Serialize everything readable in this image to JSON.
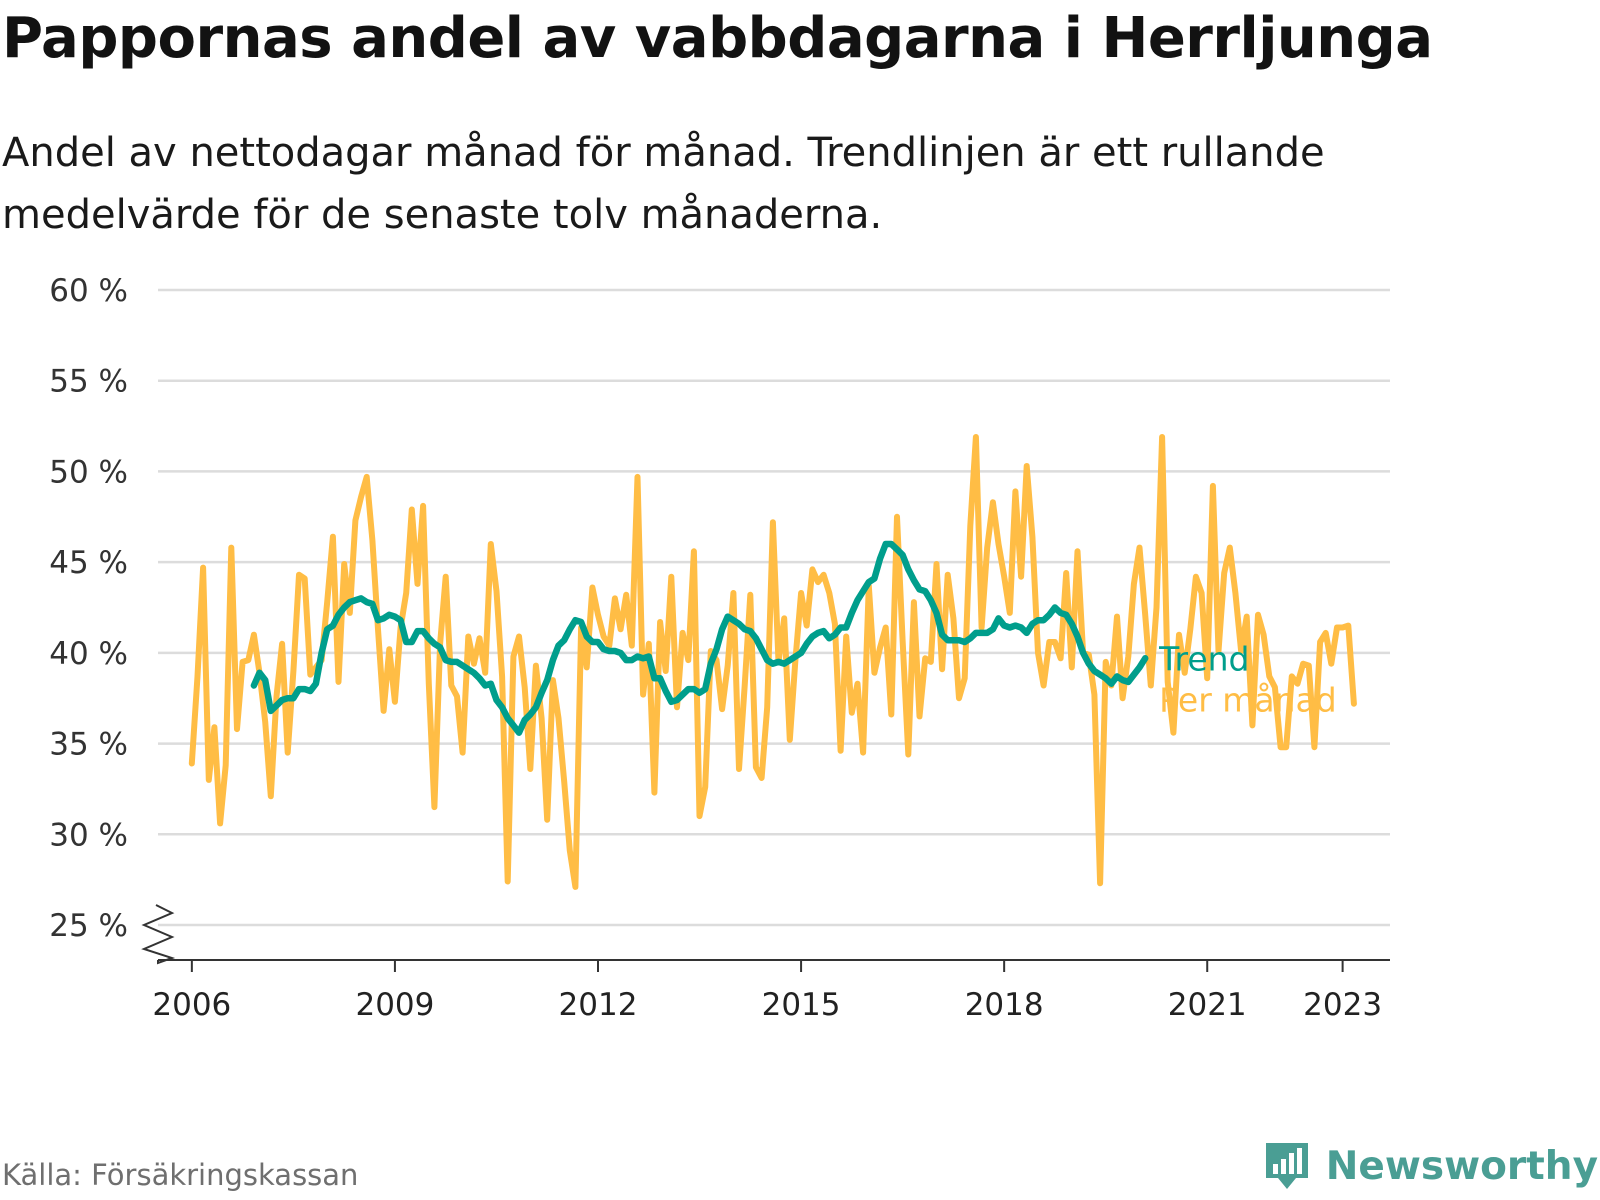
{
  "title": "Pappornas andel av vabbdagarna i Herrljunga",
  "subtitle": "Andel av nettodagar månad för månad. Trendlinjen är ett rullande medelvärde för de senaste tolv månaderna.",
  "source": "Källa: Försäkringskassan",
  "brand": {
    "name": "Newsworthy",
    "icon": "newsworthy-logo-icon",
    "color": "#4a9e94"
  },
  "chart_data": {
    "type": "line",
    "title": "Pappornas andel av vabbdagarna i Herrljunga",
    "subtitle": "Andel av nettodagar månad för månad. Trendlinjen är ett rullande medelvärde för de senaste tolv månaderna.",
    "xlabel": "",
    "ylabel": "",
    "ylim": [
      25,
      60
    ],
    "axis_break": true,
    "yticks": [
      25,
      30,
      35,
      40,
      45,
      50,
      55,
      60
    ],
    "ytick_labels": [
      "25 %",
      "30 %",
      "35 %",
      "40 %",
      "45 %",
      "50 %",
      "55 %",
      "60 %"
    ],
    "xticks": [
      2006,
      2009,
      2012,
      2015,
      2018,
      2021,
      2023
    ],
    "xtick_labels": [
      "2006",
      "2009",
      "2012",
      "2015",
      "2018",
      "2021",
      "2023"
    ],
    "grid": true,
    "legend": "end-of-line labels, right",
    "colors": {
      "monthly": "#ffbd45",
      "trend": "#009e8c",
      "grid": "#dcdcdc",
      "axis": "#333333"
    },
    "series": [
      {
        "name": "Per månad",
        "start": "2006-01",
        "frequency": "monthly",
        "values": [
          33.9,
          38.7,
          44.7,
          33.0,
          35.9,
          30.6,
          33.8,
          45.8,
          35.8,
          39.5,
          39.6,
          41.0,
          38.9,
          36.2,
          32.1,
          37.6,
          40.5,
          34.5,
          39.0,
          44.3,
          44.1,
          38.8,
          39.2,
          39.6,
          42.8,
          46.4,
          38.4,
          44.9,
          42.2,
          47.3,
          48.6,
          49.7,
          46.2,
          41.3,
          36.8,
          40.2,
          37.3,
          41.4,
          43.3,
          47.9,
          43.8,
          48.1,
          38.3,
          31.5,
          40.5,
          44.2,
          38.2,
          37.6,
          34.5,
          40.9,
          39.4,
          40.8,
          38.9,
          46.0,
          43.4,
          38.7,
          27.4,
          39.8,
          40.9,
          38.1,
          33.6,
          39.3,
          36.4,
          30.8,
          38.5,
          36.4,
          32.9,
          29.1,
          27.1,
          41.4,
          39.2,
          43.6,
          42.1,
          40.9,
          40.4,
          43.0,
          41.3,
          43.2,
          40.4,
          49.7,
          37.7,
          40.5,
          32.3,
          41.7,
          39.0,
          44.2,
          37.0,
          41.1,
          39.6,
          45.6,
          31.0,
          32.6,
          40.1,
          39.6,
          36.9,
          39.3,
          43.3,
          33.6,
          38.2,
          43.2,
          33.7,
          33.1,
          37.0,
          47.2,
          39.5,
          41.9,
          35.2,
          39.6,
          43.3,
          41.5,
          44.6,
          43.9,
          44.3,
          43.3,
          41.6,
          34.6,
          40.9,
          36.7,
          38.3,
          34.5,
          43.7,
          38.9,
          40.3,
          41.4,
          36.6,
          47.5,
          40.7,
          34.4,
          42.8,
          36.5,
          39.7,
          39.5,
          44.9,
          39.1,
          44.3,
          41.9,
          37.5,
          38.6,
          47.0,
          51.9,
          41.4,
          45.8,
          48.3,
          46.0,
          44.2,
          42.2,
          48.9,
          44.2,
          50.3,
          46.4,
          40.0,
          38.2,
          40.6,
          40.6,
          39.7,
          44.4,
          39.2,
          45.6,
          40.0,
          39.9,
          37.7,
          27.3,
          39.5,
          38.2,
          42.0,
          37.5,
          39.8,
          43.8,
          45.8,
          42.1,
          38.2,
          42.5,
          51.9,
          38.4,
          35.6,
          41.0,
          38.9,
          41.3,
          44.2,
          43.3,
          38.6,
          49.2,
          40.1,
          44.4,
          45.8,
          43.3,
          40.1,
          42.0,
          36.0,
          42.1,
          41.0,
          38.7,
          38.1,
          34.8,
          34.8,
          38.7,
          38.3,
          39.4,
          39.3,
          34.8,
          40.6,
          41.1,
          39.4,
          41.4,
          41.4,
          41.5,
          37.2
        ]
      },
      {
        "name": "Trend",
        "start": "2006-12",
        "frequency": "monthly",
        "values": [
          38.2,
          38.9,
          38.5,
          36.8,
          37.1,
          37.4,
          37.5,
          37.5,
          38.0,
          38.0,
          37.9,
          38.3,
          40.0,
          41.3,
          41.5,
          42.1,
          42.5,
          42.8,
          42.9,
          43.0,
          42.8,
          42.7,
          41.8,
          41.9,
          42.1,
          42.0,
          41.8,
          40.6,
          40.6,
          41.2,
          41.2,
          40.8,
          40.5,
          40.3,
          39.6,
          39.5,
          39.5,
          39.3,
          39.1,
          38.9,
          38.6,
          38.2,
          38.3,
          37.4,
          37.0,
          36.4,
          36.0,
          35.6,
          36.3,
          36.6,
          37.0,
          37.8,
          38.5,
          39.6,
          40.4,
          40.7,
          41.3,
          41.8,
          41.7,
          40.9,
          40.6,
          40.6,
          40.2,
          40.1,
          40.1,
          40.0,
          39.6,
          39.6,
          39.8,
          39.7,
          39.8,
          38.6,
          38.6,
          37.9,
          37.3,
          37.4,
          37.7,
          38.0,
          38.0,
          37.8,
          38.0,
          39.4,
          40.2,
          41.3,
          42.0,
          41.8,
          41.6,
          41.3,
          41.2,
          40.8,
          40.2,
          39.6,
          39.4,
          39.5,
          39.4,
          39.6,
          39.8,
          40.0,
          40.5,
          40.9,
          41.1,
          41.2,
          40.8,
          41.0,
          41.4,
          41.4,
          42.2,
          42.9,
          43.4,
          43.9,
          44.1,
          45.2,
          46.0,
          46.0,
          45.7,
          45.4,
          44.6,
          44.0,
          43.5,
          43.4,
          42.9,
          42.2,
          41.0,
          40.7,
          40.7,
          40.7,
          40.6,
          40.8,
          41.1,
          41.1,
          41.1,
          41.3,
          41.9,
          41.5,
          41.4,
          41.5,
          41.4,
          41.1,
          41.6,
          41.8,
          41.8,
          42.1,
          42.5,
          42.2,
          42.1,
          41.6,
          40.9,
          40.0,
          39.4,
          39.0,
          38.8,
          38.6,
          38.3,
          38.7,
          38.5,
          38.4,
          38.8,
          39.2,
          39.7
        ]
      }
    ],
    "end_labels": [
      "Trend",
      "Per månad"
    ]
  }
}
